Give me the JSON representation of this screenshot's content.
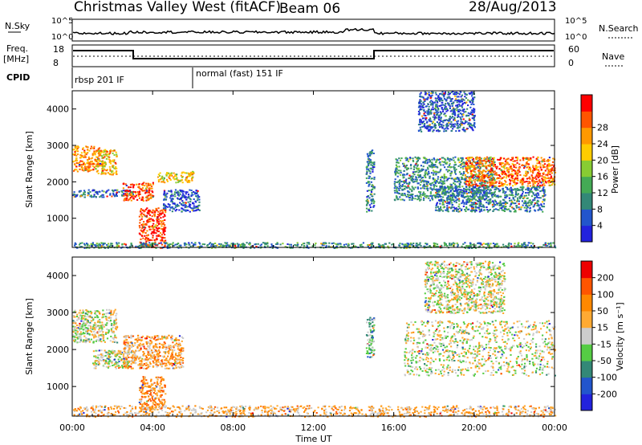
{
  "header": {
    "station": "Christmas Valley West (fitACF)",
    "beam": "Beam 06",
    "date": "28/Aug/2013"
  },
  "strip": {
    "nsky_label": "N.Sky",
    "nsearch_label": "N.Search",
    "noise_ticks_left": [
      "10^5",
      "10^0"
    ],
    "noise_ticks_right": [
      "10^5",
      "10^0"
    ],
    "freq_label_1": "Freq.",
    "freq_label_2": "[MHz]",
    "freq_ticks": [
      "18",
      "8"
    ],
    "nave_label": "Nave",
    "nave_ticks": [
      "60",
      "0"
    ],
    "cpid_label": "CPID",
    "cpid_segments": [
      {
        "label": "rbsp 201 IF",
        "start_hour": 0,
        "end_hour": 6
      },
      {
        "label": "normal (fast) 151 IF",
        "start_hour": 6,
        "end_hour": 24
      }
    ]
  },
  "chart_data": [
    {
      "type": "heatmap",
      "name": "power",
      "xlabel": "",
      "ylabel": "Slant Range [km]",
      "xlim": [
        0,
        24
      ],
      "ylim": [
        200,
        4500
      ],
      "yticks": [
        "1000",
        "2000",
        "3000",
        "4000"
      ],
      "colorbar": {
        "label": "Power [dB]",
        "ticks": [
          "4",
          "8",
          "12",
          "16",
          "20",
          "24",
          "28"
        ],
        "colors": [
          "#2222dd",
          "#2255cc",
          "#338877",
          "#44aa55",
          "#88cc33",
          "#ffcc00",
          "#ff9900",
          "#ff5500",
          "#ff0000"
        ]
      },
      "echo_regions": [
        {
          "t0": 0.0,
          "t1": 1.5,
          "r0": 2300,
          "r1": 3000,
          "level": 0.75
        },
        {
          "t0": 1.2,
          "t1": 2.2,
          "r0": 2200,
          "r1": 2900,
          "level": 0.65
        },
        {
          "t0": 0.0,
          "t1": 3.0,
          "r0": 1600,
          "r1": 1800,
          "level": 0.2
        },
        {
          "t0": 2.5,
          "t1": 4.0,
          "r0": 1500,
          "r1": 2000,
          "level": 0.85
        },
        {
          "t0": 4.2,
          "t1": 6.0,
          "r0": 2000,
          "r1": 2300,
          "level": 0.6
        },
        {
          "t0": 3.3,
          "t1": 4.6,
          "r0": 200,
          "r1": 1300,
          "level": 0.9
        },
        {
          "t0": 4.5,
          "t1": 6.3,
          "r0": 1200,
          "r1": 1800,
          "level": 0.15
        },
        {
          "t0": 0.0,
          "t1": 24.0,
          "r0": 200,
          "r1": 350,
          "level": 0.3
        },
        {
          "t0": 14.6,
          "t1": 15.0,
          "r0": 1200,
          "r1": 2900,
          "level": 0.25
        },
        {
          "t0": 16.0,
          "t1": 21.0,
          "r0": 1500,
          "r1": 2700,
          "level": 0.3
        },
        {
          "t0": 19.5,
          "t1": 24.0,
          "r0": 1900,
          "r1": 2700,
          "level": 0.8
        },
        {
          "t0": 18.0,
          "t1": 23.5,
          "r0": 1200,
          "r1": 1900,
          "level": 0.25
        },
        {
          "t0": 17.2,
          "t1": 20.0,
          "r0": 3400,
          "r1": 4500,
          "level": 0.15
        }
      ]
    },
    {
      "type": "heatmap",
      "name": "velocity",
      "xlabel": "Time UT",
      "ylabel": "Slant Range [km]",
      "xlim": [
        0,
        24
      ],
      "ylim": [
        200,
        4500
      ],
      "xticks": [
        "00:00",
        "04:00",
        "08:00",
        "12:00",
        "16:00",
        "20:00",
        "00:00"
      ],
      "yticks": [
        "1000",
        "2000",
        "3000",
        "4000"
      ],
      "colorbar": {
        "label": "Velocity [m s⁻¹]",
        "ticks": [
          "200",
          "100",
          "50",
          "15",
          "-15",
          "-50",
          "-100",
          "-200"
        ],
        "colors": [
          "#2222dd",
          "#2255cc",
          "#338877",
          "#55cc44",
          "#cccccc",
          "#ffaa33",
          "#ff8800",
          "#ff5500",
          "#ee0000"
        ]
      },
      "echo_regions": [
        {
          "t0": 0.0,
          "t1": 2.2,
          "r0": 2200,
          "r1": 3100,
          "level": 0.5
        },
        {
          "t0": 1.0,
          "t1": 3.0,
          "r0": 1500,
          "r1": 2000,
          "level": 0.5
        },
        {
          "t0": 2.5,
          "t1": 5.5,
          "r0": 1500,
          "r1": 2400,
          "level": 0.65
        },
        {
          "t0": 3.3,
          "t1": 4.6,
          "r0": 400,
          "r1": 1300,
          "level": 0.7
        },
        {
          "t0": 0.0,
          "t1": 24.0,
          "r0": 200,
          "r1": 500,
          "level": 0.62
        },
        {
          "t0": 14.6,
          "t1": 15.0,
          "r0": 1800,
          "r1": 2900,
          "level": 0.35
        },
        {
          "t0": 16.5,
          "t1": 24.0,
          "r0": 1300,
          "r1": 2800,
          "level": 0.5
        },
        {
          "t0": 17.5,
          "t1": 21.5,
          "r0": 3000,
          "r1": 4400,
          "level": 0.5
        }
      ]
    }
  ]
}
